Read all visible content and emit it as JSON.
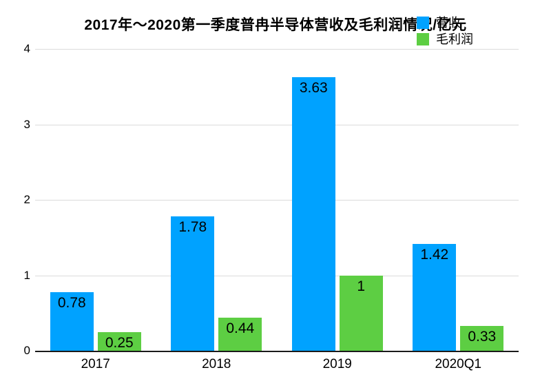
{
  "chart_data": {
    "type": "bar",
    "title": "2017年～2020第一季度普冉半导体营收及毛利润情况/亿元",
    "categories": [
      "2017",
      "2018",
      "2019",
      "2020Q1"
    ],
    "series": [
      {
        "name": "营收",
        "key": "revenue",
        "color": "#00A2FF",
        "values": [
          0.78,
          1.78,
          3.63,
          1.42
        ],
        "labels": [
          "0.78",
          "1.78",
          "3.63",
          "1.42"
        ]
      },
      {
        "name": "毛利润",
        "key": "gross-profit",
        "color": "#5DCE43",
        "values": [
          0.25,
          0.44,
          1,
          0.33
        ],
        "labels": [
          "0.25",
          "0.44",
          "1",
          "0.33"
        ]
      }
    ],
    "xlabel": "",
    "ylabel": "",
    "ylim": [
      0,
      4
    ],
    "yticks": [
      0,
      1,
      2,
      3,
      4
    ],
    "grid": true,
    "legend_position": "top-right",
    "colors": {
      "gridline": "#dbdbdb",
      "axis_line": "#1a1a1a",
      "text": "#000000",
      "background": "#ffffff"
    }
  }
}
